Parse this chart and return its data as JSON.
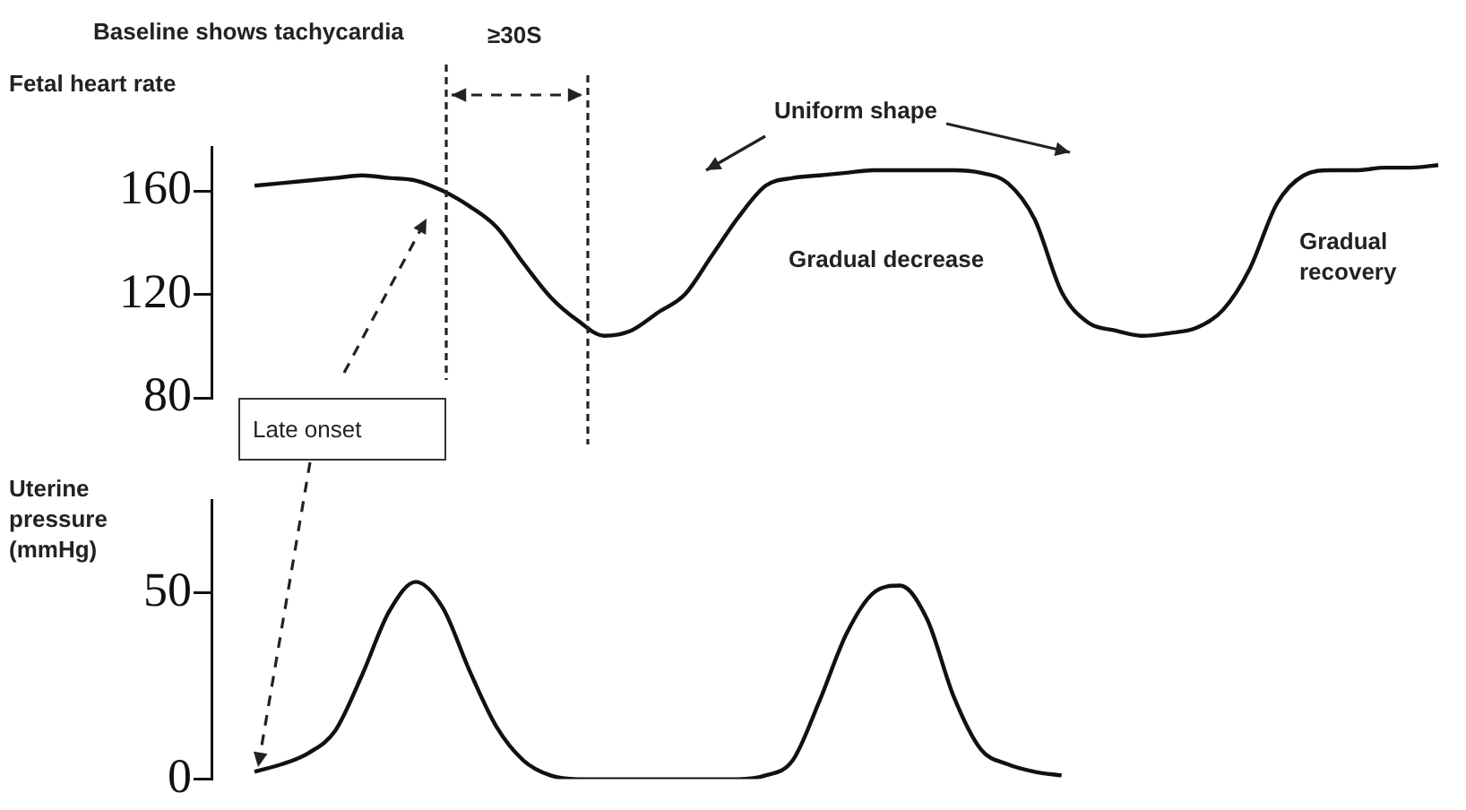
{
  "chart_data": [
    {
      "type": "line",
      "ylabel": "Fetal heart rate",
      "categories": [
        null,
        null,
        null,
        null,
        null,
        null,
        null,
        null,
        null,
        null,
        null,
        null,
        null,
        null,
        null,
        null,
        null,
        null,
        null,
        null,
        null,
        null,
        null,
        null,
        null,
        null,
        null,
        null,
        null,
        null,
        null,
        null,
        null,
        null,
        null,
        null,
        null,
        null,
        null,
        null,
        null,
        null,
        null,
        null,
        null
      ],
      "values": [
        162,
        163,
        164,
        165,
        166,
        165,
        164,
        160,
        154,
        146,
        132,
        119,
        110,
        104,
        106,
        113,
        120,
        135,
        150,
        162,
        165,
        166,
        167,
        168,
        168,
        168,
        168,
        167,
        163,
        149,
        121,
        109,
        106,
        104,
        105,
        107,
        114,
        130,
        155,
        166,
        168,
        168,
        169,
        169,
        170
      ],
      "color": "#111111",
      "ylim": [
        80,
        177
      ],
      "yticks": [
        80,
        120,
        160
      ],
      "grid": false,
      "legend": false,
      "tick_labels": "y",
      "marker": "none",
      "annotations": [
        "Baseline shows tachycardia",
        "≥30S",
        "Uniform shape",
        "Gradual decrease",
        "Gradual recovery",
        "Late onset"
      ]
    },
    {
      "type": "line",
      "ylabel": "Uterine pressure (mmHg)",
      "categories": [
        null,
        null,
        null,
        null,
        null,
        null,
        null,
        null,
        null,
        null,
        null,
        null,
        null,
        null,
        null,
        null,
        null,
        null,
        null,
        null,
        null,
        null,
        null,
        null,
        null,
        null,
        null,
        null,
        null,
        null,
        null,
        null,
        null,
        null,
        null,
        null,
        null,
        null,
        null,
        null,
        null,
        null,
        null,
        null,
        null
      ],
      "values": [
        2,
        4,
        7,
        13,
        28,
        45,
        53,
        46,
        29,
        14,
        5,
        1,
        0,
        0,
        0,
        0,
        0,
        0,
        0,
        1,
        5,
        21,
        39,
        50,
        52,
        43,
        22,
        8,
        4,
        2,
        1,
        null,
        null,
        null,
        null,
        null,
        null,
        null,
        null,
        null,
        null,
        null,
        null,
        null,
        null
      ],
      "color": "#111111",
      "ylim": [
        0,
        75
      ],
      "yticks": [
        0,
        50
      ],
      "grid": false,
      "legend": false,
      "tick_labels": "y",
      "marker": "none"
    }
  ]
}
